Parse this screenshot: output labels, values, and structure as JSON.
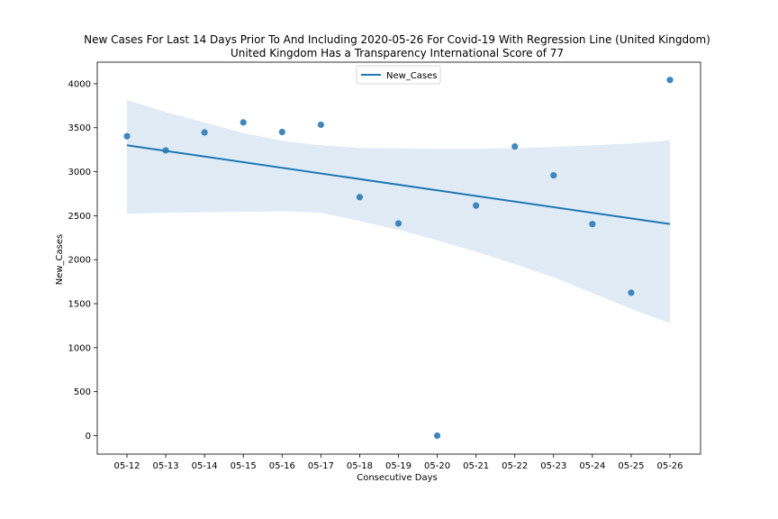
{
  "chart_data": {
    "type": "scatter",
    "title": "New Cases For Last 14 Days Prior To And Including 2020-05-26 For Covid-19 With Regression Line (United Kingdom)",
    "subtitle": "United Kingdom Has a Transparency International Score of 77",
    "xlabel": "Consecutive Days",
    "ylabel": "New_Cases",
    "categories": [
      "05-12",
      "05-13",
      "05-14",
      "05-15",
      "05-16",
      "05-17",
      "05-18",
      "05-19",
      "05-20",
      "05-21",
      "05-22",
      "05-23",
      "05-24",
      "05-25",
      "05-26"
    ],
    "series": [
      {
        "name": "New_Cases",
        "values": [
          3403,
          3242,
          3446,
          3560,
          3451,
          3534,
          2711,
          2412,
          0,
          2615,
          3287,
          2959,
          2405,
          1625,
          4043
        ]
      }
    ],
    "regression": {
      "start": 3300,
      "end": 2405,
      "ci_upper": [
        3815,
        3680,
        3560,
        3440,
        3350,
        3300,
        3270,
        3265,
        3260,
        3260,
        3270,
        3280,
        3300,
        3320,
        3355
      ],
      "ci_lower": [
        2520,
        2535,
        2540,
        2545,
        2550,
        2535,
        2440,
        2340,
        2220,
        2090,
        1950,
        1800,
        1620,
        1440,
        1280
      ]
    },
    "yticks": [
      0,
      500,
      1000,
      1500,
      2000,
      2500,
      3000,
      3500,
      4000
    ],
    "ylim": [
      -210,
      4245
    ],
    "legend": {
      "position": "top-center",
      "entries": [
        "New_Cases"
      ]
    },
    "grid": false,
    "colors": {
      "line": "#1f77b4",
      "points": "#2c7bb6",
      "band": "#dbe8f4"
    }
  }
}
